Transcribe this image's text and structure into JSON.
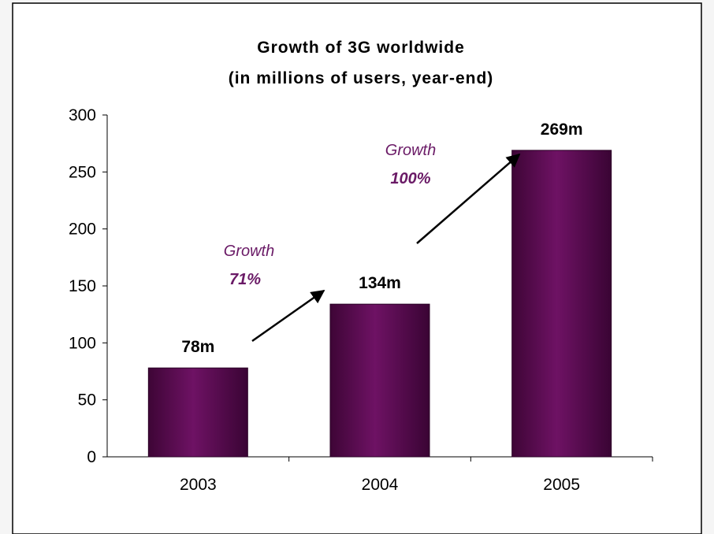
{
  "chart_data": {
    "type": "bar",
    "title": "Growth of 3G worldwide",
    "subtitle": "(in millions of users, year-end)",
    "xlabel": "",
    "ylabel": "",
    "categories": [
      "2003",
      "2004",
      "2005"
    ],
    "values": [
      78,
      134,
      269
    ],
    "data_labels": [
      "78m",
      "134m",
      "269m"
    ],
    "ylim": [
      0,
      300
    ],
    "yticks": [
      0,
      50,
      100,
      150,
      200,
      250,
      300
    ],
    "grid": false,
    "legend": "none",
    "bar_color": "#5c0a52",
    "bar_highlight_color": "#7a1670",
    "annotations": [
      {
        "label": "Growth",
        "value": "71%",
        "from": "2003",
        "to": "2004"
      },
      {
        "label": "Growth",
        "value": "100%",
        "from": "2004",
        "to": "2005"
      }
    ],
    "annotation_color": "#6a1a66"
  }
}
